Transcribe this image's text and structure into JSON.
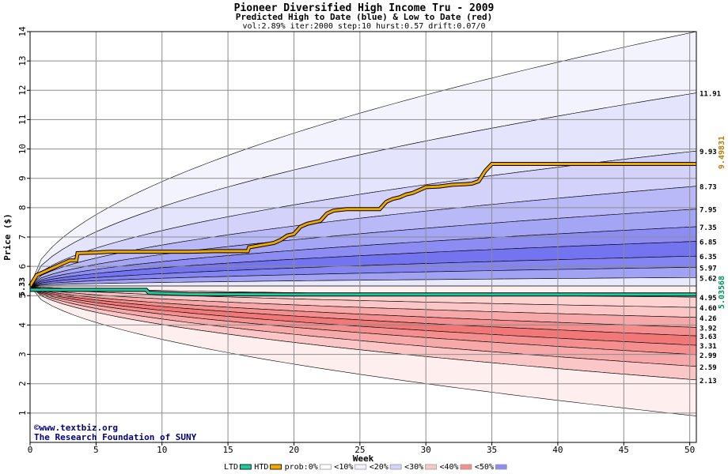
{
  "chart_data": {
    "type": "area",
    "title": "Pioneer Diversified High Income Tru - 2009",
    "subtitle": "Predicted High to Date (blue) &  Low to Date (red)",
    "params": "vol:2.89% iter:2000 step:10 hurst:0.57 drift:0.07/0",
    "xlabel": "Week",
    "ylabel": "Price ($)",
    "xlim": [
      0,
      50.5
    ],
    "ylim": [
      0,
      14
    ],
    "x_ticks": [
      0,
      5,
      10,
      15,
      20,
      25,
      30,
      35,
      40,
      45,
      50
    ],
    "y_ticks": [
      1,
      2,
      3,
      4,
      5,
      6,
      7,
      8,
      9,
      10,
      11,
      12,
      13,
      14
    ],
    "grid": true,
    "start_price": 5.33,
    "start_label": "5.33",
    "right_labels": [
      "11.91",
      "9.93",
      "8.73",
      "7.95",
      "7.35",
      "6.85",
      "6.35",
      "5.97",
      "5.62",
      "4.95",
      "4.60",
      "4.26",
      "3.92",
      "3.63",
      "3.31",
      "2.99",
      "2.59",
      "2.13"
    ],
    "high_bands": [
      14,
      11.91,
      9.93,
      8.73,
      7.95,
      7.35,
      6.85,
      6.35,
      5.97,
      5.62,
      5.33
    ],
    "low_bands": [
      5.33,
      4.95,
      4.6,
      4.26,
      3.92,
      3.63,
      3.31,
      2.99,
      2.59,
      2.13,
      0.9
    ],
    "htd_series": {
      "name": "HTD",
      "final_label": "9.49831",
      "x": [
        0,
        0.5,
        1,
        1.5,
        2,
        3,
        3.5,
        3.6,
        5,
        6,
        8,
        10,
        12,
        14,
        16.5,
        16.6,
        17.5,
        18.5,
        19,
        19.5,
        20,
        20.5,
        21,
        22,
        22.5,
        23,
        24,
        25,
        26,
        26.5,
        27,
        27.5,
        28,
        28.5,
        29,
        29.5,
        30,
        31,
        32,
        33,
        33.5,
        34,
        34.5,
        35,
        36,
        40,
        45,
        50.5
      ],
      "y": [
        5.33,
        5.7,
        5.8,
        5.9,
        6.0,
        6.2,
        6.2,
        6.45,
        6.47,
        6.5,
        6.5,
        6.5,
        6.5,
        6.52,
        6.52,
        6.65,
        6.72,
        6.8,
        6.9,
        7.05,
        7.1,
        7.35,
        7.45,
        7.55,
        7.8,
        7.9,
        7.95,
        7.95,
        7.95,
        7.95,
        8.2,
        8.3,
        8.35,
        8.45,
        8.5,
        8.6,
        8.7,
        8.72,
        8.78,
        8.8,
        8.82,
        8.9,
        9.25,
        9.49,
        9.49,
        9.49,
        9.49,
        9.49
      ]
    },
    "ltd_series": {
      "name": "LTD",
      "final_label": "5.03568",
      "x": [
        0,
        2,
        4,
        6,
        8,
        8.8,
        9.0,
        12,
        20,
        30,
        40,
        50.5
      ],
      "y": [
        5.2,
        5.2,
        5.2,
        5.2,
        5.2,
        5.2,
        5.1,
        5.05,
        5.04,
        5.04,
        5.04,
        5.04
      ]
    },
    "colors": {
      "htd": "#f0a800",
      "ltd": "#20c8a0",
      "high_right_label": "#b87a00",
      "low_right_label": "#009060",
      "title": "#000000",
      "grid": "#8c8c8c",
      "blue_bands": [
        "#f3f3fe",
        "#e4e4fc",
        "#d2d2fa",
        "#b9b9f7",
        "#a5a5f5",
        "#8c8cf3",
        "#7474f0",
        "#8484f2",
        "#a2a2f5",
        "#e9e9fd"
      ],
      "red_bands": [
        "#fff0f0",
        "#ffd2d2",
        "#fbc6c6",
        "#f7a8a8",
        "#f58f8f",
        "#f27878",
        "#f58f8f",
        "#f7a8a8",
        "#fbc6c6",
        "#feeeee"
      ]
    },
    "legend": [
      {
        "label": "LTD",
        "swatch": "#20c8a0"
      },
      {
        "label": "HTD",
        "swatch": "#f0a800"
      },
      {
        "label": "prob:0%",
        "swatch": "#ffffff"
      },
      {
        "label": "<10%",
        "swatch": "#f3f3fe"
      },
      {
        "label": "<20%",
        "swatch": "#d2d2fa"
      },
      {
        "label": "<30%",
        "swatch": "#fbc6c6"
      },
      {
        "label": "<40%",
        "swatch": "#f58f8f"
      },
      {
        "label": "<50%",
        "swatch": "#8c8cf3"
      }
    ],
    "footer_lines": [
      "©www.textbiz.org",
      "The Research Foundation of SUNY"
    ]
  }
}
